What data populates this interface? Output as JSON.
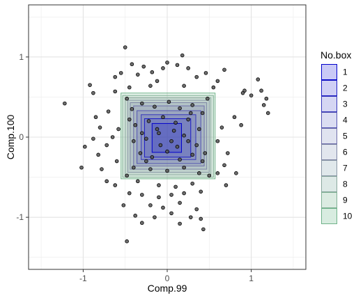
{
  "chart_data": {
    "type": "scatter",
    "xlabel": "Comp.99",
    "ylabel": "Comp.100",
    "xlim": [
      -1.65,
      1.65
    ],
    "ylim": [
      -1.65,
      1.65
    ],
    "x_ticks": [
      {
        "value": -1,
        "label": "-1"
      },
      {
        "value": 0,
        "label": "0"
      },
      {
        "value": 1,
        "label": "1"
      }
    ],
    "y_ticks": [
      {
        "value": 1,
        "label": "1"
      },
      {
        "value": 0,
        "label": "0"
      },
      {
        "value": -1,
        "label": "-1"
      }
    ],
    "grid": true,
    "legend_position": "right",
    "legend": {
      "title": "No.box",
      "entries": [
        {
          "label": "1",
          "fill": "#c9c9f6",
          "stroke": "#0000cc"
        },
        {
          "label": "2",
          "fill": "#cfcff5",
          "stroke": "#1c1cc4"
        },
        {
          "label": "3",
          "fill": "#d5d6f3",
          "stroke": "#3838bb"
        },
        {
          "label": "4",
          "fill": "#dbddf2",
          "stroke": "#5454b2"
        },
        {
          "label": "5",
          "fill": "#e0e3f0",
          "stroke": "#6e6eaa"
        },
        {
          "label": "6",
          "fill": "#e2e6ee",
          "stroke": "#7f86a6"
        },
        {
          "label": "7",
          "fill": "#e0e8eb",
          "stroke": "#8a98a6"
        },
        {
          "label": "8",
          "fill": "#dde9e6",
          "stroke": "#8aa89e"
        },
        {
          "label": "9",
          "fill": "#dbebe1",
          "stroke": "#80b094"
        },
        {
          "label": "10",
          "fill": "#d8ece0",
          "stroke": "#70b38a"
        }
      ]
    },
    "boxes": [
      {
        "no": 10,
        "x": [
          -0.55,
          0.57
        ],
        "y": [
          -0.52,
          0.55
        ]
      },
      {
        "no": 9,
        "x": [
          -0.53,
          0.55
        ],
        "y": [
          -0.5,
          0.52
        ]
      },
      {
        "no": 8,
        "x": [
          -0.5,
          0.52
        ],
        "y": [
          -0.47,
          0.49
        ]
      },
      {
        "no": 7,
        "x": [
          -0.47,
          0.5
        ],
        "y": [
          -0.44,
          0.46
        ]
      },
      {
        "no": 6,
        "x": [
          -0.44,
          0.47
        ],
        "y": [
          -0.4,
          0.43
        ]
      },
      {
        "no": 5,
        "x": [
          -0.4,
          0.44
        ],
        "y": [
          -0.36,
          0.39
        ]
      },
      {
        "no": 4,
        "x": [
          -0.36,
          0.4
        ],
        "y": [
          -0.33,
          0.33
        ]
      },
      {
        "no": 3,
        "x": [
          -0.31,
          0.34
        ],
        "y": [
          -0.28,
          0.28
        ]
      },
      {
        "no": 2,
        "x": [
          -0.27,
          0.28
        ],
        "y": [
          -0.25,
          0.23
        ]
      },
      {
        "no": 1,
        "x": [
          -0.18,
          0.17
        ],
        "y": [
          -0.19,
          0.17
        ]
      }
    ],
    "points": [
      [
        -0.5,
        1.12
      ],
      [
        0.0,
        0.93
      ],
      [
        -0.42,
        0.91
      ],
      [
        0.18,
        1.02
      ],
      [
        -0.28,
        0.88
      ],
      [
        0.25,
        0.86
      ],
      [
        -0.55,
        0.8
      ],
      [
        -0.05,
        0.86
      ],
      [
        0.46,
        0.8
      ],
      [
        0.68,
        0.84
      ],
      [
        -0.18,
        0.81
      ],
      [
        0.12,
        0.9
      ],
      [
        -1.22,
        0.42
      ],
      [
        -0.92,
        0.65
      ],
      [
        -0.88,
        0.55
      ],
      [
        -0.62,
        0.75
      ],
      [
        -0.35,
        0.78
      ],
      [
        0.35,
        0.75
      ],
      [
        -0.12,
        0.7
      ],
      [
        0.6,
        0.7
      ],
      [
        0.92,
        0.58
      ],
      [
        1.0,
        0.52
      ],
      [
        1.15,
        0.4
      ],
      [
        1.18,
        0.48
      ],
      [
        1.08,
        0.72
      ],
      [
        0.55,
        0.62
      ],
      [
        -0.45,
        0.62
      ],
      [
        -0.2,
        0.64
      ],
      [
        0.2,
        0.64
      ],
      [
        -0.62,
        0.57
      ],
      [
        -0.7,
        0.32
      ],
      [
        -0.85,
        0.25
      ],
      [
        -0.8,
        0.12
      ],
      [
        -0.58,
        0.1
      ],
      [
        -0.65,
        0.0
      ],
      [
        -0.88,
        -0.02
      ],
      [
        -0.72,
        -0.1
      ],
      [
        -0.98,
        -0.12
      ],
      [
        -0.82,
        -0.22
      ],
      [
        -0.6,
        -0.3
      ],
      [
        -0.78,
        -0.4
      ],
      [
        -1.02,
        -0.38
      ],
      [
        -0.72,
        -0.55
      ],
      [
        -0.62,
        -0.6
      ],
      [
        0.6,
        -0.05
      ],
      [
        0.65,
        0.12
      ],
      [
        0.72,
        -0.2
      ],
      [
        0.8,
        0.25
      ],
      [
        0.88,
        0.15
      ],
      [
        0.68,
        -0.35
      ],
      [
        0.82,
        -0.45
      ],
      [
        0.7,
        -0.6
      ],
      [
        0.6,
        -0.45
      ],
      [
        1.2,
        0.3
      ],
      [
        1.12,
        0.58
      ],
      [
        0.9,
        0.55
      ],
      [
        -0.45,
        -0.7
      ],
      [
        -0.3,
        -0.72
      ],
      [
        -0.1,
        -0.75
      ],
      [
        0.05,
        -0.72
      ],
      [
        0.2,
        -0.7
      ],
      [
        0.4,
        -0.68
      ],
      [
        -0.2,
        -0.85
      ],
      [
        -0.05,
        -0.88
      ],
      [
        0.15,
        -0.82
      ],
      [
        0.35,
        -0.9
      ],
      [
        -0.52,
        -0.85
      ],
      [
        -0.38,
        -0.98
      ],
      [
        -0.15,
        -1.0
      ],
      [
        0.05,
        -0.95
      ],
      [
        0.28,
        -1.0
      ],
      [
        0.4,
        -1.02
      ],
      [
        0.15,
        -1.08
      ],
      [
        -0.3,
        -1.07
      ],
      [
        0.43,
        -1.15
      ],
      [
        -0.48,
        -1.3
      ],
      [
        -0.1,
        -0.6
      ],
      [
        0.1,
        -0.62
      ],
      [
        0.3,
        -0.58
      ],
      [
        -0.35,
        -0.55
      ],
      [
        -0.42,
        0.35
      ],
      [
        -0.3,
        0.42
      ],
      [
        -0.15,
        0.38
      ],
      [
        0.02,
        0.44
      ],
      [
        0.15,
        0.36
      ],
      [
        0.3,
        0.4
      ],
      [
        0.42,
        0.3
      ],
      [
        -0.38,
        0.15
      ],
      [
        -0.22,
        0.2
      ],
      [
        -0.05,
        0.25
      ],
      [
        0.1,
        0.18
      ],
      [
        0.25,
        0.22
      ],
      [
        0.38,
        0.1
      ],
      [
        -0.4,
        -0.05
      ],
      [
        -0.25,
        -0.02
      ],
      [
        -0.1,
        0.05
      ],
      [
        0.05,
        -0.05
      ],
      [
        0.2,
        0.02
      ],
      [
        0.35,
        -0.1
      ],
      [
        -0.32,
        -0.2
      ],
      [
        -0.18,
        -0.25
      ],
      [
        0.0,
        -0.18
      ],
      [
        0.15,
        -0.28
      ],
      [
        0.3,
        -0.22
      ],
      [
        0.42,
        -0.3
      ],
      [
        -0.4,
        -0.38
      ],
      [
        -0.2,
        -0.4
      ],
      [
        0.0,
        -0.42
      ],
      [
        0.2,
        -0.38
      ],
      [
        0.38,
        -0.45
      ],
      [
        -0.48,
        0.48
      ],
      [
        0.48,
        0.48
      ],
      [
        -0.48,
        -0.48
      ],
      [
        0.5,
        -0.48
      ],
      [
        -0.12,
        0.1
      ],
      [
        0.08,
        0.08
      ],
      [
        -0.08,
        -0.1
      ],
      [
        0.12,
        -0.12
      ],
      [
        -0.3,
        0.05
      ],
      [
        0.28,
        0.3
      ],
      [
        -0.25,
        -0.3
      ],
      [
        0.25,
        -0.05
      ],
      [
        -0.45,
        0.22
      ],
      [
        0.45,
        -0.2
      ]
    ]
  }
}
